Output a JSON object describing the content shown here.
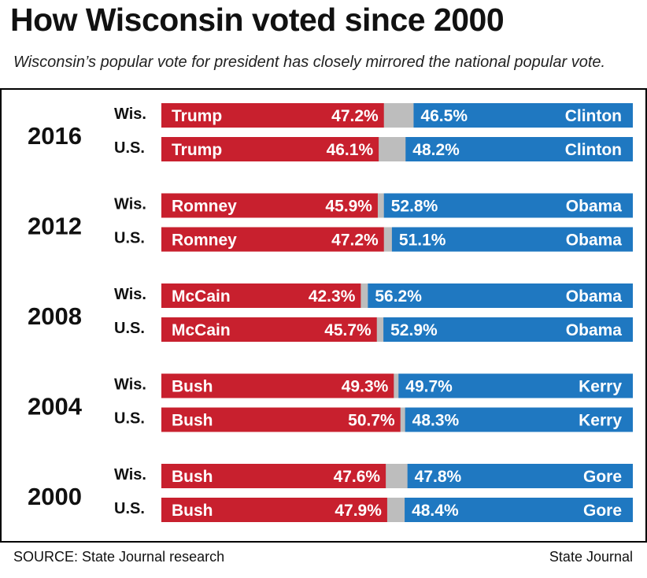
{
  "title": "How Wisconsin voted since 2000",
  "subtitle": "Wisconsin’s popular vote for president has closely mirrored the national popular vote.",
  "source": "SOURCE: State Journal research",
  "credit": "State Journal",
  "colors": {
    "republican": "#c8202e",
    "democrat": "#1f78c1",
    "other": "#bdbdbd"
  },
  "chart_data": {
    "type": "bar",
    "stacked": true,
    "orientation": "horizontal",
    "xlim": [
      0,
      100
    ],
    "groups": [
      {
        "year": "2016",
        "rows": [
          {
            "label": "Wis.",
            "rep_name": "Trump",
            "rep": 47.2,
            "rep_label": "47.2%",
            "dem_name": "Clinton",
            "dem": 46.5,
            "dem_label": "46.5%"
          },
          {
            "label": "U.S.",
            "rep_name": "Trump",
            "rep": 46.1,
            "rep_label": "46.1%",
            "dem_name": "Clinton",
            "dem": 48.2,
            "dem_label": "48.2%"
          }
        ]
      },
      {
        "year": "2012",
        "rows": [
          {
            "label": "Wis.",
            "rep_name": "Romney",
            "rep": 45.9,
            "rep_label": "45.9%",
            "dem_name": "Obama",
            "dem": 52.8,
            "dem_label": "52.8%"
          },
          {
            "label": "U.S.",
            "rep_name": "Romney",
            "rep": 47.2,
            "rep_label": "47.2%",
            "dem_name": "Obama",
            "dem": 51.1,
            "dem_label": "51.1%"
          }
        ]
      },
      {
        "year": "2008",
        "rows": [
          {
            "label": "Wis.",
            "rep_name": "McCain",
            "rep": 42.3,
            "rep_label": "42.3%",
            "dem_name": "Obama",
            "dem": 56.2,
            "dem_label": "56.2%"
          },
          {
            "label": "U.S.",
            "rep_name": "McCain",
            "rep": 45.7,
            "rep_label": "45.7%",
            "dem_name": "Obama",
            "dem": 52.9,
            "dem_label": "52.9%"
          }
        ]
      },
      {
        "year": "2004",
        "rows": [
          {
            "label": "Wis.",
            "rep_name": "Bush",
            "rep": 49.3,
            "rep_label": "49.3%",
            "dem_name": "Kerry",
            "dem": 49.7,
            "dem_label": "49.7%"
          },
          {
            "label": "U.S.",
            "rep_name": "Bush",
            "rep": 50.7,
            "rep_label": "50.7%",
            "dem_name": "Kerry",
            "dem": 48.3,
            "dem_label": "48.3%"
          }
        ]
      },
      {
        "year": "2000",
        "rows": [
          {
            "label": "Wis.",
            "rep_name": "Bush",
            "rep": 47.6,
            "rep_label": "47.6%",
            "dem_name": "Gore",
            "dem": 47.8,
            "dem_label": "47.8%"
          },
          {
            "label": "U.S.",
            "rep_name": "Bush",
            "rep": 47.9,
            "rep_label": "47.9%",
            "dem_name": "Gore",
            "dem": 48.4,
            "dem_label": "48.4%"
          }
        ]
      }
    ]
  }
}
